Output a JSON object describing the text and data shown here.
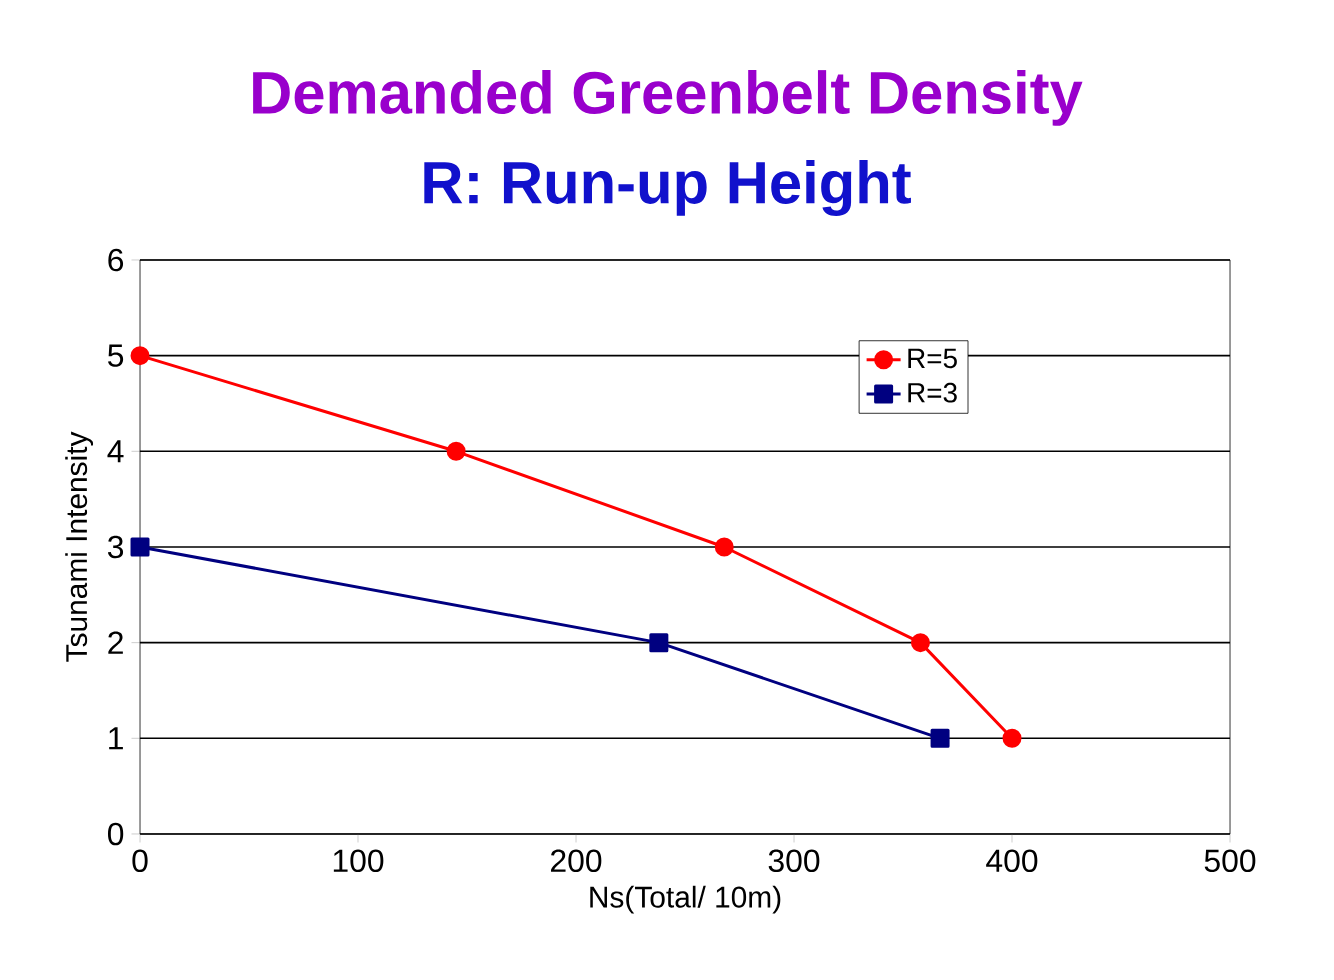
{
  "chart_data": {
    "type": "line",
    "title": "Demanded Greenbelt Density",
    "subtitle": "R: Run-up Height",
    "xlabel": "Ns(Total/ 10m)",
    "ylabel": "Tsunami Intensity",
    "series": [
      {
        "name": "R=5",
        "color": "#ff0000",
        "marker": "circle",
        "x": [
          0,
          145,
          268,
          358,
          400
        ],
        "values": [
          5,
          4,
          3,
          2,
          1
        ]
      },
      {
        "name": "R=3",
        "color": "#000080",
        "marker": "square",
        "x": [
          0,
          238,
          367
        ],
        "values": [
          3,
          2,
          1
        ]
      }
    ],
    "xlim": [
      0,
      500
    ],
    "ylim": [
      0,
      6
    ],
    "xticks": [
      0,
      100,
      200,
      300,
      400,
      500
    ],
    "yticks": [
      0,
      1,
      2,
      3,
      4,
      5,
      6
    ],
    "grid": "y",
    "legend": "top right",
    "line_style": "solid"
  }
}
